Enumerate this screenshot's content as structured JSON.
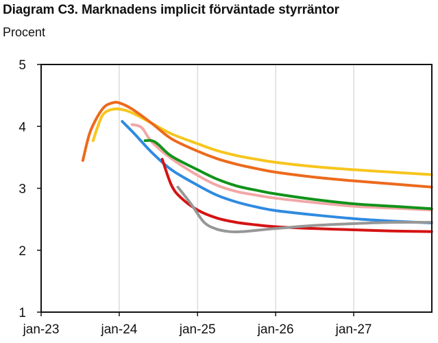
{
  "header": {
    "title": "Diagram C3. Marknadens implicit förväntade styrräntor",
    "unit": "Procent"
  },
  "colors": {
    "orange": "#ec6a1c",
    "yellow": "#f7c51d",
    "blue": "#2f8be0",
    "pink": "#f2a7a7",
    "green": "#11931a",
    "red": "#d51313",
    "gray": "#979797"
  },
  "chart_data": {
    "type": "line",
    "title": "Diagram C3. Marknadens implicit förväntade styrräntor",
    "ylabel": "Procent",
    "xlabel": "",
    "ylim": [
      1,
      5
    ],
    "yticks": [
      1,
      2,
      3,
      4,
      5
    ],
    "xlim": [
      "2023-01-01",
      "2027-12-31"
    ],
    "xticks": [
      "jan-23",
      "jan-24",
      "jan-25",
      "jan-26",
      "jan-27"
    ],
    "grid": "vertical",
    "series": [
      {
        "color": "#f7c51d",
        "x": [
          "2023-09-01",
          "2023-09-20",
          "2023-10-15",
          "2023-11-15",
          "2024-01-01",
          "2024-03-01",
          "2024-06-01",
          "2024-09-01",
          "2025-01-01",
          "2025-04-01",
          "2025-07-01",
          "2025-10-01",
          "2026-01-01",
          "2026-07-01",
          "2027-01-01",
          "2027-07-01",
          "2027-12-31"
        ],
        "y": [
          3.77,
          3.97,
          4.18,
          4.26,
          4.28,
          4.22,
          4.05,
          3.88,
          3.72,
          3.61,
          3.53,
          3.47,
          3.42,
          3.35,
          3.3,
          3.26,
          3.22
        ]
      },
      {
        "color": "#ec6a1c",
        "x": [
          "2023-07-15",
          "2023-08-15",
          "2023-09-20",
          "2023-10-25",
          "2023-12-01",
          "2024-01-01",
          "2024-03-01",
          "2024-06-01",
          "2024-09-01",
          "2025-01-01",
          "2025-04-01",
          "2025-07-01",
          "2025-10-01",
          "2026-01-01",
          "2026-07-01",
          "2027-01-01",
          "2027-07-01",
          "2027-12-31"
        ],
        "y": [
          3.45,
          3.88,
          4.15,
          4.32,
          4.38,
          4.38,
          4.28,
          4.05,
          3.8,
          3.6,
          3.48,
          3.39,
          3.32,
          3.26,
          3.18,
          3.12,
          3.07,
          3.02
        ]
      },
      {
        "color": "#f2a7a7",
        "x": [
          "2024-03-01",
          "2024-04-15",
          "2024-06-01",
          "2024-09-01",
          "2025-01-01",
          "2025-04-01",
          "2025-07-01",
          "2025-10-01",
          "2026-01-01",
          "2026-07-01",
          "2027-01-01",
          "2027-07-01",
          "2027-12-31"
        ],
        "y": [
          4.03,
          3.98,
          3.75,
          3.48,
          3.21,
          3.05,
          2.95,
          2.89,
          2.84,
          2.77,
          2.71,
          2.68,
          2.65
        ]
      },
      {
        "color": "#2f8be0",
        "x": [
          "2024-01-15",
          "2024-03-15",
          "2024-06-01",
          "2024-09-01",
          "2025-01-01",
          "2025-04-01",
          "2025-07-01",
          "2025-10-01",
          "2026-01-01",
          "2026-07-01",
          "2027-01-01",
          "2027-07-01",
          "2027-12-31"
        ],
        "y": [
          4.08,
          3.87,
          3.58,
          3.3,
          3.05,
          2.89,
          2.78,
          2.7,
          2.64,
          2.57,
          2.51,
          2.47,
          2.44
        ]
      },
      {
        "color": "#11931a",
        "x": [
          "2024-05-01",
          "2024-06-01",
          "2024-07-01",
          "2024-09-01",
          "2025-01-01",
          "2025-04-01",
          "2025-07-01",
          "2025-10-01",
          "2026-01-01",
          "2026-07-01",
          "2027-01-01",
          "2027-07-01",
          "2027-12-31"
        ],
        "y": [
          3.77,
          3.77,
          3.71,
          3.52,
          3.3,
          3.15,
          3.04,
          2.97,
          2.91,
          2.82,
          2.75,
          2.71,
          2.67
        ]
      },
      {
        "color": "#d51313",
        "x": [
          "2024-07-20",
          "2024-09-01",
          "2024-10-15",
          "2025-01-01",
          "2025-04-01",
          "2025-07-01",
          "2025-10-01",
          "2026-01-01",
          "2026-07-01",
          "2027-01-01",
          "2027-07-01",
          "2027-12-31"
        ],
        "y": [
          3.47,
          3.05,
          2.85,
          2.65,
          2.52,
          2.45,
          2.41,
          2.38,
          2.35,
          2.33,
          2.31,
          2.3
        ]
      },
      {
        "color": "#979797",
        "x": [
          "2024-10-01",
          "2024-12-01",
          "2025-02-01",
          "2025-04-01",
          "2025-06-01",
          "2025-08-01",
          "2025-10-01",
          "2026-01-01",
          "2026-07-01",
          "2027-01-01",
          "2027-07-01",
          "2027-12-31"
        ],
        "y": [
          3.02,
          2.75,
          2.45,
          2.34,
          2.3,
          2.3,
          2.32,
          2.35,
          2.4,
          2.43,
          2.45,
          2.45
        ]
      }
    ]
  }
}
